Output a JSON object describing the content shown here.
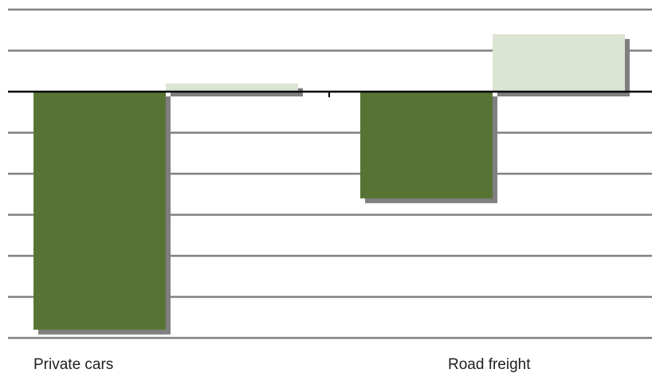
{
  "chart_data": {
    "type": "bar",
    "title": "",
    "xlabel": "",
    "ylabel": "",
    "categories": [
      "Private cars",
      "Road freight"
    ],
    "series": [
      {
        "values": [
          -5.8,
          -2.6
        ],
        "color": "#587435"
      },
      {
        "values": [
          0.2,
          1.4
        ],
        "color": "#dce4d4"
      }
    ],
    "ylim": [
      -6,
      2
    ],
    "grid": true,
    "legend": "none",
    "shadow_color": "#7f7f7f",
    "grid_color": "#808080",
    "axis_color": "#000000"
  }
}
